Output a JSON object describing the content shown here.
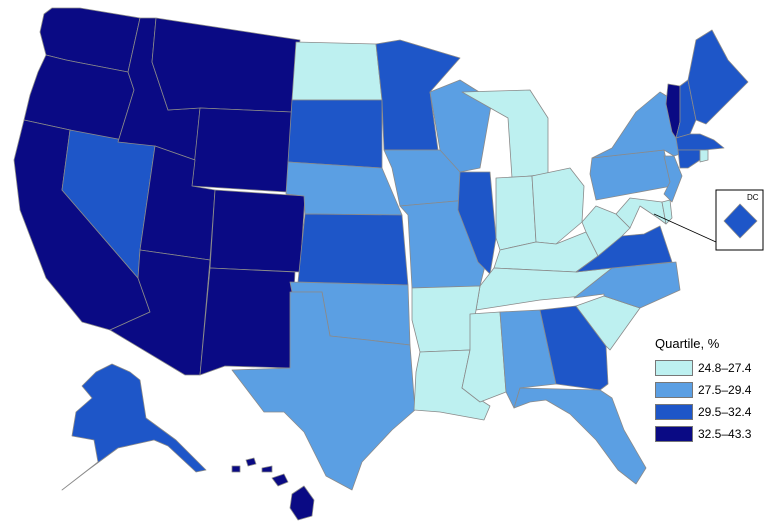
{
  "legend": {
    "title": "Quartile, %",
    "bins": [
      {
        "label": "24.8–27.4",
        "color": "#bdf0f0"
      },
      {
        "label": "27.5–29.4",
        "color": "#5b9fe3"
      },
      {
        "label": "29.5–32.4",
        "color": "#1e56c8"
      },
      {
        "label": "32.5–43.3",
        "color": "#0a0a84"
      }
    ]
  },
  "inset": {
    "label": "DC"
  },
  "states": {
    "WA": 3,
    "OR": 3,
    "CA": 3,
    "ID": 3,
    "MT": 3,
    "WY": 3,
    "UT": 3,
    "AZ": 3,
    "CO": 3,
    "NM": 3,
    "HI": 3,
    "VT": 3,
    "NV": 2,
    "SD": 2,
    "MN": 2,
    "KS": 2,
    "IL": 2,
    "VA": 2,
    "GA": 2,
    "AK": 2,
    "ME": 2,
    "NH": 2,
    "MA": 2,
    "CT": 2,
    "DC": 2,
    "NE": 1,
    "IA": 1,
    "WI": 1,
    "MO": 1,
    "OK": 1,
    "TX": 1,
    "NC": 1,
    "AL": 1,
    "FL": 1,
    "NY": 1,
    "PA": 1,
    "NJ": 1,
    "ND": 0,
    "MI": 0,
    "IN": 0,
    "OH": 0,
    "KY": 0,
    "WV": 0,
    "TN": 0,
    "AR": 0,
    "LA": 0,
    "MS": 0,
    "SC": 0,
    "MD": 0,
    "DE": 0,
    "RI": 0
  }
}
